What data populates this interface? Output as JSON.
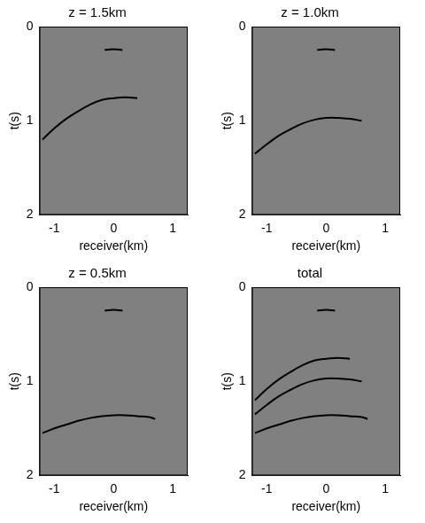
{
  "chart_data": [
    {
      "type": "line",
      "title": "z = 1.5km",
      "x_label": "receiver(km)",
      "y_label": "t(s)",
      "xlim": [
        -1.25,
        1.25
      ],
      "xticks": [
        -1,
        0,
        1
      ],
      "ylim": [
        2,
        0
      ],
      "yticks": [
        0,
        1,
        2
      ],
      "grid": false,
      "series": [
        {
          "color": "#000000",
          "x": [
            -0.15,
            0,
            0.15
          ],
          "values": [
            0.25,
            0.24,
            0.25
          ]
        },
        {
          "color": "#000000",
          "x": [
            -1.2,
            -1.0,
            -0.8,
            -0.6,
            -0.4,
            -0.2,
            0,
            0.2,
            0.4
          ],
          "values": [
            1.2,
            1.08,
            0.98,
            0.9,
            0.83,
            0.78,
            0.76,
            0.75,
            0.76
          ]
        }
      ]
    },
    {
      "type": "line",
      "title": "z = 1.0km",
      "x_label": "receiver(km)",
      "y_label": "t(s)",
      "xlim": [
        -1.25,
        1.25
      ],
      "xticks": [
        -1,
        0,
        1
      ],
      "ylim": [
        2,
        0
      ],
      "yticks": [
        0,
        1,
        2
      ],
      "grid": false,
      "series": [
        {
          "color": "#000000",
          "x": [
            -0.15,
            0,
            0.15
          ],
          "values": [
            0.25,
            0.24,
            0.25
          ]
        },
        {
          "color": "#000000",
          "x": [
            -1.2,
            -1.0,
            -0.8,
            -0.6,
            -0.4,
            -0.2,
            0,
            0.2,
            0.4,
            0.6
          ],
          "values": [
            1.35,
            1.25,
            1.16,
            1.09,
            1.03,
            0.99,
            0.97,
            0.97,
            0.98,
            1.0
          ]
        }
      ]
    },
    {
      "type": "line",
      "title": "z = 0.5km",
      "x_label": "receiver(km)",
      "y_label": "t(s)",
      "xlim": [
        -1.25,
        1.25
      ],
      "xticks": [
        -1,
        0,
        1
      ],
      "ylim": [
        2,
        0
      ],
      "yticks": [
        0,
        1,
        2
      ],
      "grid": false,
      "series": [
        {
          "color": "#000000",
          "x": [
            -0.15,
            0,
            0.15
          ],
          "values": [
            0.25,
            0.24,
            0.25
          ]
        },
        {
          "color": "#000000",
          "x": [
            -1.2,
            -1.0,
            -0.8,
            -0.6,
            -0.4,
            -0.2,
            0,
            0.2,
            0.4,
            0.6,
            0.7
          ],
          "values": [
            1.55,
            1.5,
            1.46,
            1.42,
            1.39,
            1.37,
            1.36,
            1.36,
            1.37,
            1.38,
            1.4
          ]
        }
      ]
    },
    {
      "type": "line",
      "title": "total",
      "x_label": "receiver(km)",
      "y_label": "t(s)",
      "xlim": [
        -1.25,
        1.25
      ],
      "xticks": [
        -1,
        0,
        1
      ],
      "ylim": [
        2,
        0
      ],
      "yticks": [
        0,
        1,
        2
      ],
      "grid": false,
      "series": [
        {
          "color": "#000000",
          "x": [
            -0.15,
            0,
            0.15
          ],
          "values": [
            0.25,
            0.24,
            0.25
          ]
        },
        {
          "color": "#000000",
          "x": [
            -1.2,
            -1.0,
            -0.8,
            -0.6,
            -0.4,
            -0.2,
            0,
            0.2,
            0.4
          ],
          "values": [
            1.2,
            1.08,
            0.98,
            0.9,
            0.83,
            0.78,
            0.76,
            0.75,
            0.76
          ]
        },
        {
          "color": "#000000",
          "x": [
            -1.2,
            -1.0,
            -0.8,
            -0.6,
            -0.4,
            -0.2,
            0,
            0.2,
            0.4,
            0.6
          ],
          "values": [
            1.35,
            1.25,
            1.16,
            1.09,
            1.03,
            0.99,
            0.97,
            0.97,
            0.98,
            1.0
          ]
        },
        {
          "color": "#000000",
          "x": [
            -1.2,
            -1.0,
            -0.8,
            -0.6,
            -0.4,
            -0.2,
            0,
            0.2,
            0.4,
            0.6,
            0.7
          ],
          "values": [
            1.55,
            1.5,
            1.46,
            1.42,
            1.39,
            1.37,
            1.36,
            1.36,
            1.37,
            1.38,
            1.4
          ]
        }
      ]
    }
  ]
}
